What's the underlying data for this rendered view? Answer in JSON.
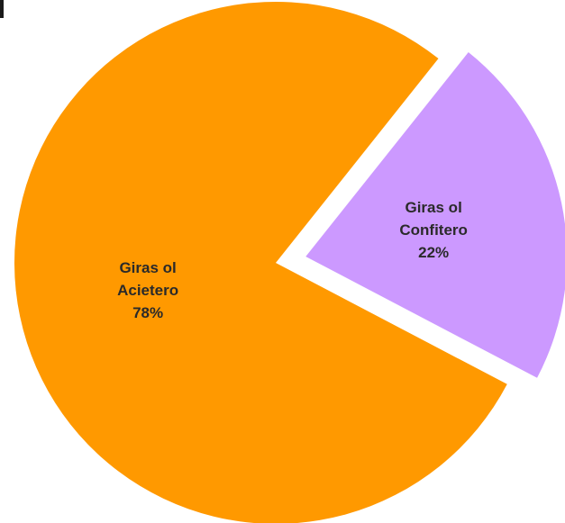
{
  "chart_data": {
    "type": "pie",
    "title": "",
    "start_angle_deg": -51.5,
    "direction": "clockwise",
    "exploded": [
      "Giras ol Confitero"
    ],
    "slices": [
      {
        "label_lines": [
          "Giras ol",
          "Confitero",
          "22%"
        ],
        "name": "Giras ol Confitero",
        "value": 22,
        "display": "22%",
        "color": "#cc99ff"
      },
      {
        "label_lines": [
          "Giras ol",
          "Acietero",
          "78%"
        ],
        "name": "Giras ol Acietero",
        "value": 78,
        "display": "78%",
        "color": "#ff9900"
      }
    ],
    "legend": "none"
  }
}
